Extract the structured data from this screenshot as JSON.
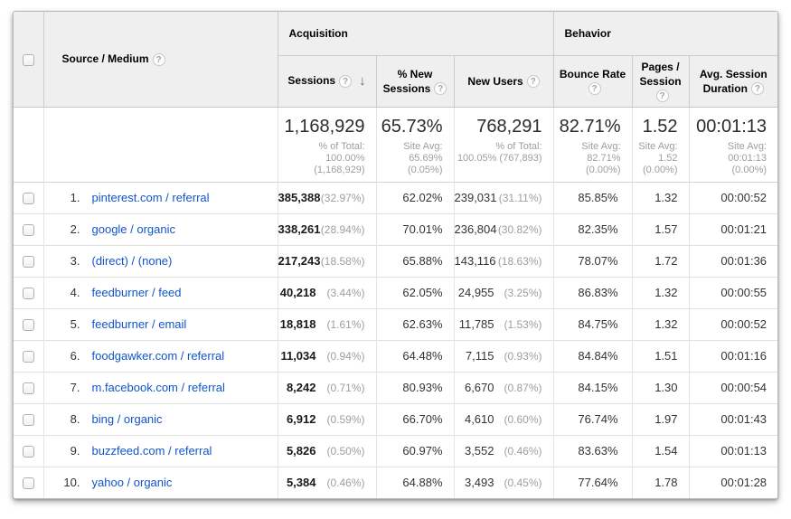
{
  "colors": {
    "header_bg": "#efefef",
    "link_blue": "#1155cc",
    "subtext_gray": "#9e9e9e",
    "border_gray": "#cccccc"
  },
  "icons": {
    "help": "?",
    "sort_desc": "↓"
  },
  "table": {
    "dimension_header": "Source / Medium",
    "groups": [
      {
        "label": "Acquisition"
      },
      {
        "label": "Behavior"
      }
    ],
    "columns": [
      {
        "label": "Sessions"
      },
      {
        "label": "% New Sessions"
      },
      {
        "label": "New Users"
      },
      {
        "label": "Bounce Rate"
      },
      {
        "label": "Pages / Session"
      },
      {
        "label": "Avg. Session Duration"
      }
    ],
    "totals": {
      "sessions": {
        "value": "1,168,929",
        "sub1": "% of Total:",
        "sub2": "100.00%",
        "sub3": "(1,168,929)"
      },
      "new_sessions": {
        "value": "65.73%",
        "sub1": "Site Avg:",
        "sub2": "65.69%",
        "sub3": "(0.05%)"
      },
      "new_users": {
        "value": "768,291",
        "sub1": "% of Total:",
        "sub2": "100.05% (767,893)",
        "sub3": ""
      },
      "bounce_rate": {
        "value": "82.71%",
        "sub1": "Site Avg:",
        "sub2": "82.71%",
        "sub3": "(0.00%)"
      },
      "pages_session": {
        "value": "1.52",
        "sub1": "Site Avg:",
        "sub2": "1.52",
        "sub3": "(0.00%)"
      },
      "avg_duration": {
        "value": "00:01:13",
        "sub1": "Site Avg:",
        "sub2": "00:01:13",
        "sub3": "(0.00%)"
      }
    },
    "rows": [
      {
        "rank": "1.",
        "source": "pinterest.com / referral",
        "sessions": "385,388",
        "sessions_pct": "(32.97%)",
        "new_sessions": "62.02%",
        "new_users": "239,031",
        "new_users_pct": "(31.11%)",
        "bounce_rate": "85.85%",
        "pages_session": "1.32",
        "avg_duration": "00:00:52"
      },
      {
        "rank": "2.",
        "source": "google / organic",
        "sessions": "338,261",
        "sessions_pct": "(28.94%)",
        "new_sessions": "70.01%",
        "new_users": "236,804",
        "new_users_pct": "(30.82%)",
        "bounce_rate": "82.35%",
        "pages_session": "1.57",
        "avg_duration": "00:01:21"
      },
      {
        "rank": "3.",
        "source": "(direct) / (none)",
        "sessions": "217,243",
        "sessions_pct": "(18.58%)",
        "new_sessions": "65.88%",
        "new_users": "143,116",
        "new_users_pct": "(18.63%)",
        "bounce_rate": "78.07%",
        "pages_session": "1.72",
        "avg_duration": "00:01:36"
      },
      {
        "rank": "4.",
        "source": "feedburner / feed",
        "sessions": "40,218",
        "sessions_pct": "(3.44%)",
        "new_sessions": "62.05%",
        "new_users": "24,955",
        "new_users_pct": "(3.25%)",
        "bounce_rate": "86.83%",
        "pages_session": "1.32",
        "avg_duration": "00:00:55"
      },
      {
        "rank": "5.",
        "source": "feedburner / email",
        "sessions": "18,818",
        "sessions_pct": "(1.61%)",
        "new_sessions": "62.63%",
        "new_users": "11,785",
        "new_users_pct": "(1.53%)",
        "bounce_rate": "84.75%",
        "pages_session": "1.32",
        "avg_duration": "00:00:52"
      },
      {
        "rank": "6.",
        "source": "foodgawker.com / referral",
        "sessions": "11,034",
        "sessions_pct": "(0.94%)",
        "new_sessions": "64.48%",
        "new_users": "7,115",
        "new_users_pct": "(0.93%)",
        "bounce_rate": "84.84%",
        "pages_session": "1.51",
        "avg_duration": "00:01:16"
      },
      {
        "rank": "7.",
        "source": "m.facebook.com / referral",
        "sessions": "8,242",
        "sessions_pct": "(0.71%)",
        "new_sessions": "80.93%",
        "new_users": "6,670",
        "new_users_pct": "(0.87%)",
        "bounce_rate": "84.15%",
        "pages_session": "1.30",
        "avg_duration": "00:00:54"
      },
      {
        "rank": "8.",
        "source": "bing / organic",
        "sessions": "6,912",
        "sessions_pct": "(0.59%)",
        "new_sessions": "66.70%",
        "new_users": "4,610",
        "new_users_pct": "(0.60%)",
        "bounce_rate": "76.74%",
        "pages_session": "1.97",
        "avg_duration": "00:01:43"
      },
      {
        "rank": "9.",
        "source": "buzzfeed.com / referral",
        "sessions": "5,826",
        "sessions_pct": "(0.50%)",
        "new_sessions": "60.97%",
        "new_users": "3,552",
        "new_users_pct": "(0.46%)",
        "bounce_rate": "83.63%",
        "pages_session": "1.54",
        "avg_duration": "00:01:13"
      },
      {
        "rank": "10.",
        "source": "yahoo / organic",
        "sessions": "5,384",
        "sessions_pct": "(0.46%)",
        "new_sessions": "64.88%",
        "new_users": "3,493",
        "new_users_pct": "(0.45%)",
        "bounce_rate": "77.64%",
        "pages_session": "1.78",
        "avg_duration": "00:01:28"
      }
    ]
  }
}
